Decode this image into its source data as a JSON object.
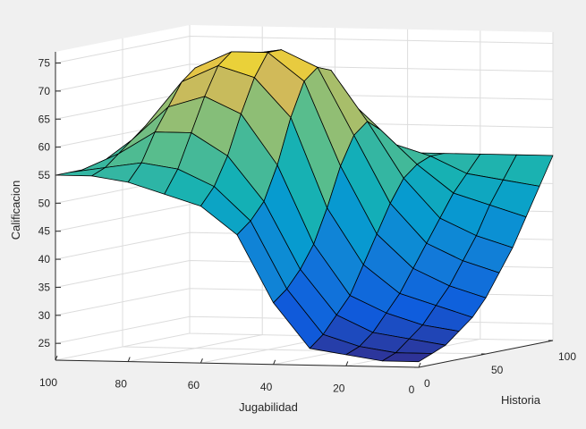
{
  "chart_data": {
    "type": "surface",
    "xlabel": "Jugabilidad",
    "ylabel": "Historia",
    "zlabel": "Calificacion",
    "xlim": [
      0,
      100
    ],
    "ylim": [
      0,
      100
    ],
    "zlim": [
      22,
      77
    ],
    "xticks": [
      "100",
      "80",
      "60",
      "40",
      "20",
      "0"
    ],
    "yticks": [
      "0",
      "50",
      "100"
    ],
    "zticks": [
      "25",
      "30",
      "35",
      "40",
      "45",
      "50",
      "55",
      "60",
      "65",
      "70",
      "75"
    ],
    "grid": true,
    "colormap": "parula",
    "jugabilidad": [
      100,
      90,
      80,
      70,
      60,
      50,
      40,
      30,
      20,
      10,
      0
    ],
    "historia": [
      0,
      10,
      20,
      30,
      40,
      50,
      60,
      70,
      80,
      90,
      100
    ],
    "calificacion": [
      [
        55,
        55,
        55,
        55,
        55,
        55,
        55,
        55,
        55,
        55,
        55
      ],
      [
        55,
        56,
        58,
        60,
        62,
        63,
        62,
        60,
        58,
        56,
        55
      ],
      [
        54,
        57,
        62,
        66,
        70,
        72,
        71,
        67,
        62,
        57,
        55
      ],
      [
        52,
        56,
        62,
        68,
        73,
        75,
        74,
        70,
        64,
        58,
        55
      ],
      [
        50,
        53,
        58,
        65,
        71,
        75,
        75,
        72,
        66,
        59,
        55
      ],
      [
        45,
        47,
        50,
        56,
        64,
        70,
        72,
        71,
        66,
        59,
        55
      ],
      [
        33,
        35,
        38,
        42,
        48,
        55,
        60,
        62,
        60,
        57,
        55
      ],
      [
        25,
        27,
        30,
        33,
        38,
        43,
        48,
        52,
        54,
        55,
        55
      ],
      [
        24,
        25,
        27,
        30,
        33,
        37,
        41,
        45,
        49,
        52,
        55
      ],
      [
        23,
        24,
        26,
        28,
        31,
        34,
        38,
        42,
        47,
        51,
        55
      ],
      [
        23,
        24,
        25,
        27,
        29,
        32,
        36,
        40,
        45,
        50,
        55
      ]
    ]
  }
}
